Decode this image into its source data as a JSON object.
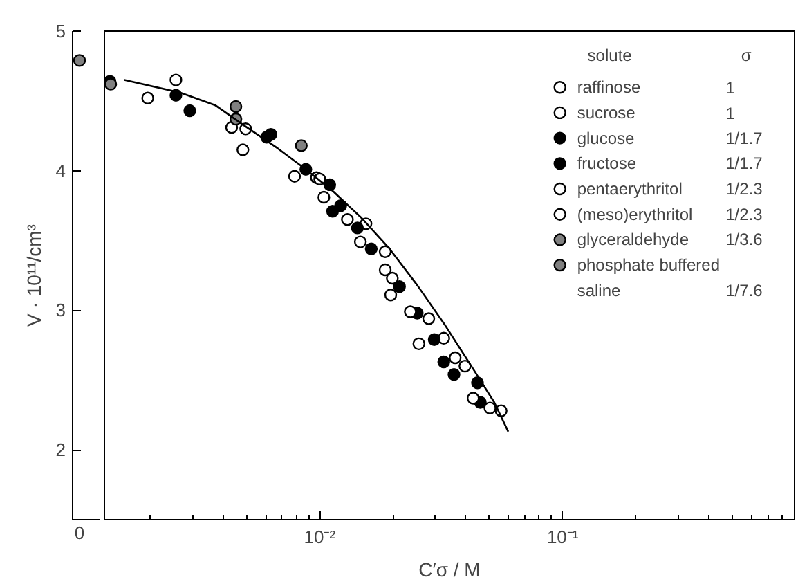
{
  "chart_data": [
    {
      "type": "scatter",
      "ylabel": "V · 10¹¹/cm³",
      "categories": [
        "0"
      ],
      "ylim": [
        1.5,
        5
      ],
      "yticks": [
        2,
        3,
        4,
        5
      ],
      "grid": false,
      "marker": "circle",
      "series": [
        {
          "color": "#808080",
          "values": [
            4.79
          ]
        }
      ]
    },
    {
      "type": "scatter",
      "xlabel": "C′σ / M",
      "log": "x",
      "xlim": [
        0.0013,
        0.9
      ],
      "xticks": [
        {
          "value": 0.01,
          "label": "10⁻²"
        },
        {
          "value": 0.1,
          "label": "10⁻¹"
        }
      ],
      "ylim": [
        1.5,
        5
      ],
      "yticks": [
        2,
        3,
        4,
        5
      ],
      "tick_labels": "x",
      "grid": false,
      "marker": "circle",
      "legend": "top right",
      "legend_title": "solute",
      "annotations": [
        "σ",
        "1",
        "1",
        "1/1.7",
        "1/1.7",
        "1/2.3",
        "1/2.3",
        "1/3.6",
        "1/7.6"
      ],
      "series": [
        {
          "name": "raffinose",
          "color": "#ffffff",
          "x": [
            0.00196,
            0.00496,
            0.0097,
            0.013,
            0.0186,
            0.0281,
            0.0396
          ],
          "values": [
            4.52,
            4.3,
            3.95,
            3.65,
            3.42,
            2.94,
            2.6
          ]
        },
        {
          "name": "sucrose",
          "color": "#ffffff",
          "x": [
            0.00256,
            0.00434,
            0.0104,
            0.0155,
            0.0199,
            0.0324,
            0.0502
          ],
          "values": [
            4.65,
            4.31,
            3.81,
            3.62,
            3.23,
            2.8,
            2.3
          ]
        },
        {
          "name": "glucose",
          "color": "#000000",
          "x": [
            0.00137,
            0.00256,
            0.00605,
            0.00877,
            0.0113,
            0.0163,
            0.0252,
            0.0296,
            0.0357,
            0.0458
          ],
          "values": [
            4.64,
            4.54,
            4.24,
            4.01,
            3.71,
            3.44,
            2.98,
            2.79,
            2.54,
            2.34
          ]
        },
        {
          "name": "fructose",
          "color": "#000000",
          "x": [
            0.00292,
            0.0063,
            0.011,
            0.0122,
            0.0143,
            0.0213,
            0.0324,
            0.0446
          ],
          "values": [
            4.43,
            4.26,
            3.9,
            3.75,
            3.59,
            3.17,
            2.63,
            2.48
          ]
        },
        {
          "name": "pentaerythritol",
          "color": "#ffffff",
          "x": [
            0.00483,
            0.0147,
            0.0196,
            0.0256,
            0.0428
          ],
          "values": [
            4.15,
            3.49,
            3.11,
            2.76,
            2.37
          ]
        },
        {
          "name": "(meso)erythritol",
          "color": "#ffffff",
          "x": [
            0.00788,
            0.01,
            0.0186,
            0.0236,
            0.0361,
            0.0558
          ],
          "values": [
            3.96,
            3.94,
            3.29,
            2.99,
            2.66,
            2.28
          ]
        },
        {
          "name": "glyceraldehyde",
          "color": "#808080",
          "x": [
            0.00452,
            0.00452,
            0.00138
          ],
          "values": [
            4.46,
            4.37,
            4.62
          ]
        },
        {
          "name": "phosphate buffered saline",
          "color": "#808080",
          "x": [
            0.0084
          ],
          "values": [
            4.18
          ]
        },
        {
          "type": "line",
          "marker": "none",
          "color": "#000000",
          "x": [
            0.00157,
            0.00266,
            0.00371,
            0.00483,
            0.00672,
            0.00877,
            0.0114,
            0.0149,
            0.0194,
            0.0252,
            0.0329,
            0.0428,
            0.0523,
            0.0597
          ],
          "values": [
            4.65,
            4.56,
            4.47,
            4.33,
            4.16,
            4.01,
            3.85,
            3.66,
            3.44,
            3.18,
            2.89,
            2.58,
            2.34,
            2.13
          ]
        }
      ]
    }
  ]
}
